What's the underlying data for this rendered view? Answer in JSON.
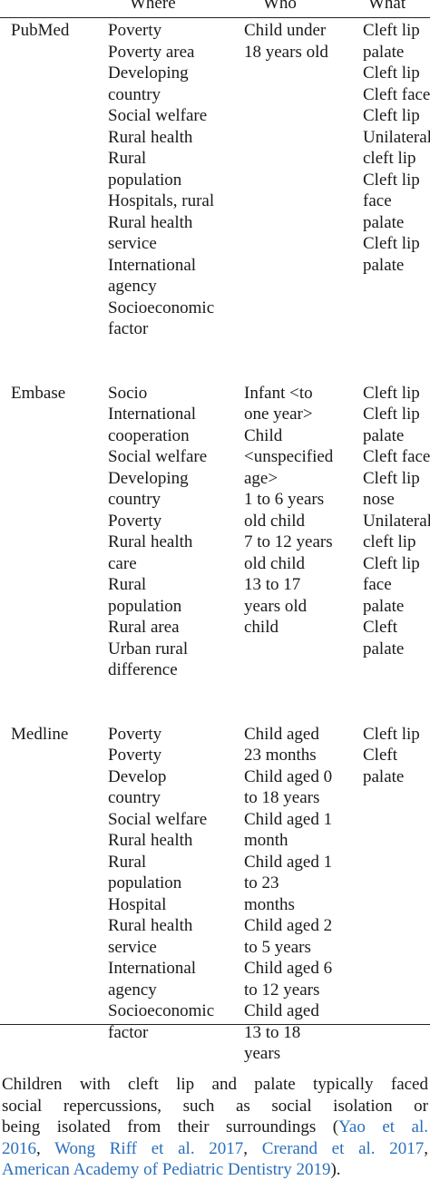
{
  "table": {
    "headers": {
      "where": "Where",
      "who": "Who",
      "what": "What"
    },
    "rows": [
      {
        "database": "PubMed",
        "where": [
          "Poverty",
          "Poverty area",
          "Developing",
          "country",
          "Social welfare",
          "Rural health",
          "Rural",
          "population",
          "Hospitals, rural",
          "Rural health",
          "service",
          "International",
          "agency",
          "Socioeconomic",
          "factor"
        ],
        "who": [
          "Child under",
          "18 years old"
        ],
        "what": [
          "Cleft lip",
          "palate",
          "Cleft lip",
          "Cleft face",
          "Cleft lip",
          "Unilateral",
          "cleft lip",
          "Cleft lip",
          "face",
          "palate",
          "Cleft lip",
          "palate"
        ]
      },
      {
        "database": "Embase",
        "where": [
          "Socio",
          "International",
          "cooperation",
          "Social welfare",
          "Developing",
          "country",
          "Poverty",
          "Rural health",
          "care",
          "Rural",
          "population",
          "Rural area",
          "Urban rural",
          "difference"
        ],
        "who": [
          "Infant <to",
          "one year>",
          "Child",
          "<unspecified",
          "age>",
          "1 to 6 years",
          "old child",
          "7 to 12 years",
          "old child",
          "13 to 17",
          "years old",
          "child"
        ],
        "what": [
          "Cleft lip",
          "Cleft lip",
          "palate",
          "Cleft face",
          "Cleft lip",
          "nose",
          "Unilateral",
          "cleft lip",
          "Cleft lip",
          "face",
          "palate",
          "Cleft",
          "palate"
        ]
      },
      {
        "database": "Medline",
        "where": [
          "Poverty",
          "Poverty",
          "Develop",
          "country",
          "Social welfare",
          "Rural health",
          "Rural",
          "population",
          "Hospital",
          "Rural health",
          "service",
          "International",
          "agency",
          "Socioeconomic",
          "factor"
        ],
        "who": [
          "Child aged",
          "23 months",
          "Child aged 0",
          "to 18 years",
          "Child aged 1",
          "month",
          "Child aged 1",
          "to 23",
          "months",
          "Child aged 2",
          "to 5 years",
          "Child aged 6",
          "to 12 years",
          "Child aged",
          "13 to 18",
          "years"
        ],
        "what": [
          "Cleft lip",
          "Cleft",
          "palate"
        ]
      }
    ]
  },
  "paragraph": {
    "lines": [
      {
        "text": "Children with cleft lip and palate typically faced"
      },
      {
        "text": "social repercussions, such as social isolation or"
      },
      {
        "text": "being isolated from their surroundings (",
        "cite": "Yao et al."
      },
      {
        "cite": "2016",
        "text2": ", ",
        "cite2": "Wong Riff et al. 2017",
        "text3": ", ",
        "cite3": "Crerand et al. 2017",
        "text4": ","
      },
      {
        "cite": "American Academy of Pediatric Dentistry 2019",
        "text2": ")."
      }
    ]
  }
}
